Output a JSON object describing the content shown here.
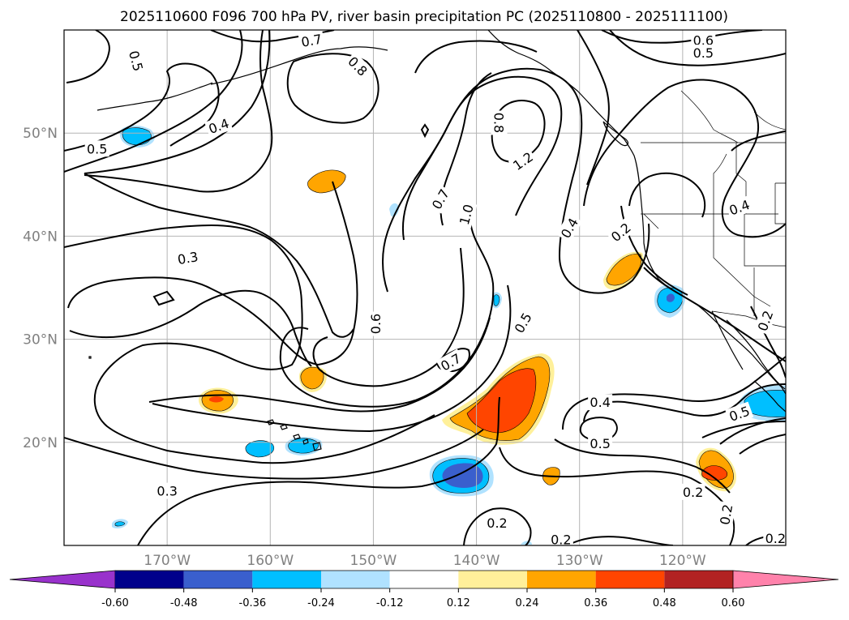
{
  "title": "2025110600 F096 700 hPa PV, river basin precipitation PC (2025110800 - 2025111100)",
  "lat_labels": [
    {
      "lat": 50,
      "text": "50°N"
    },
    {
      "lat": 40,
      "text": "40°N"
    },
    {
      "lat": 30,
      "text": "30°N"
    },
    {
      "lat": 20,
      "text": "20°N"
    }
  ],
  "lon_labels": [
    {
      "lon": -170,
      "text": "170°W"
    },
    {
      "lon": -160,
      "text": "160°W"
    },
    {
      "lon": -150,
      "text": "150°W"
    },
    {
      "lon": -140,
      "text": "140°W"
    },
    {
      "lon": -130,
      "text": "130°W"
    },
    {
      "lon": -120,
      "text": "120°W"
    }
  ],
  "colorbar": {
    "ticks": [
      "-0.60",
      "-0.48",
      "-0.36",
      "-0.24",
      "-0.12",
      "0.12",
      "0.24",
      "0.36",
      "0.48",
      "0.60"
    ],
    "colors": [
      "#9932cc",
      "#00008b",
      "#3a5fcd",
      "#00bfff",
      "#b0e2ff",
      "#ffffff",
      "#fff09a",
      "#ffa500",
      "#ff4500",
      "#b22222",
      "#ff82ab"
    ]
  },
  "contour_labels": [
    {
      "text": "0.5",
      "lon": -173.0,
      "lat": 57.0,
      "rot": 75
    },
    {
      "text": "0.7",
      "lon": -156.0,
      "lat": 59.0,
      "rot": -10
    },
    {
      "text": "0.8",
      "lon": -151.5,
      "lat": 56.5,
      "rot": 45
    },
    {
      "text": "0.6",
      "lon": -118.0,
      "lat": 59.0,
      "rot": 0
    },
    {
      "text": "0.5",
      "lon": -118.0,
      "lat": 57.8,
      "rot": 0
    },
    {
      "text": "0.4",
      "lon": -165.0,
      "lat": 50.7,
      "rot": -20
    },
    {
      "text": "0.5",
      "lon": -176.8,
      "lat": 48.5,
      "rot": 0
    },
    {
      "text": "0.8",
      "lon": -137.8,
      "lat": 51.0,
      "rot": 90
    },
    {
      "text": "1.2",
      "lon": -135.5,
      "lat": 47.3,
      "rot": -35
    },
    {
      "text": "0.7",
      "lon": -143.5,
      "lat": 43.6,
      "rot": -60
    },
    {
      "text": "1.0",
      "lon": -141.0,
      "lat": 42.1,
      "rot": -75
    },
    {
      "text": "0.4",
      "lon": -131.0,
      "lat": 40.8,
      "rot": -60
    },
    {
      "text": "0.2",
      "lon": -126.0,
      "lat": 40.4,
      "rot": -40
    },
    {
      "text": "0.4",
      "lon": -114.5,
      "lat": 42.8,
      "rot": -20
    },
    {
      "text": "0.3",
      "lon": -168.0,
      "lat": 37.9,
      "rot": -10
    },
    {
      "text": "0.6",
      "lon": -149.8,
      "lat": 31.5,
      "rot": -90
    },
    {
      "text": "0.5",
      "lon": -135.5,
      "lat": 31.6,
      "rot": -60
    },
    {
      "text": "0.7",
      "lon": -142.5,
      "lat": 27.8,
      "rot": -30
    },
    {
      "text": "0.4",
      "lon": -128.0,
      "lat": 23.9,
      "rot": 0
    },
    {
      "text": "0.5",
      "lon": -114.5,
      "lat": 22.8,
      "rot": -20
    },
    {
      "text": "0.5",
      "lon": -128.0,
      "lat": 19.9,
      "rot": 0
    },
    {
      "text": "0.3",
      "lon": -170.0,
      "lat": 15.3,
      "rot": 0
    },
    {
      "text": "0.2",
      "lon": -119.0,
      "lat": 15.2,
      "rot": 0
    },
    {
      "text": "0.2",
      "lon": -115.8,
      "lat": 13.0,
      "rot": -80
    },
    {
      "text": "0.2",
      "lon": -138.0,
      "lat": 12.2,
      "rot": 0
    },
    {
      "text": "0.2",
      "lon": -131.8,
      "lat": 10.6,
      "rot": 0
    },
    {
      "text": "0.2",
      "lon": -111.0,
      "lat": 10.7,
      "rot": 0
    },
    {
      "text": "0.2",
      "lon": -112.0,
      "lat": 31.8,
      "rot": -70
    }
  ]
}
